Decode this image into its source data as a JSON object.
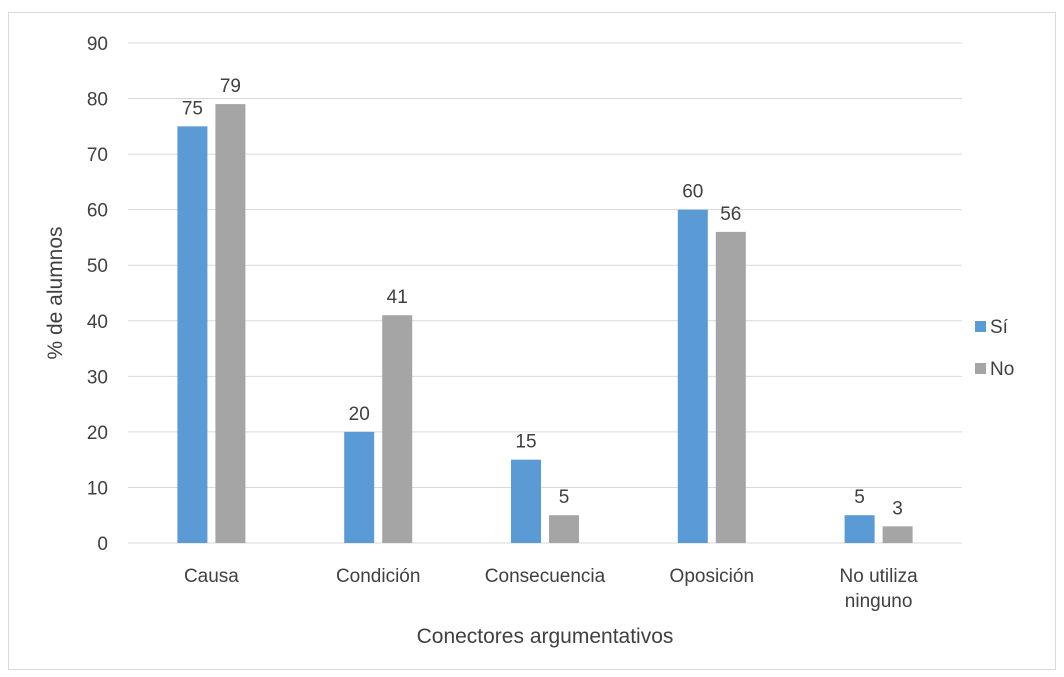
{
  "chart_data": {
    "type": "bar",
    "title": "",
    "xlabel": "Conectores argumentativos",
    "ylabel": "% de alumnos",
    "categories": [
      [
        "Causa"
      ],
      [
        "Condición"
      ],
      [
        "Consecuencia"
      ],
      [
        "Oposición"
      ],
      [
        "No utiliza",
        "ninguno"
      ]
    ],
    "series": [
      {
        "name": "Sí",
        "color": "#5b9bd5",
        "values": [
          75,
          20,
          15,
          60,
          5
        ]
      },
      {
        "name": "No",
        "color": "#a5a5a5",
        "values": [
          79,
          41,
          5,
          56,
          3
        ]
      }
    ],
    "ylim": [
      0,
      90
    ],
    "yticks": [
      0,
      10,
      20,
      30,
      40,
      50,
      60,
      70,
      80,
      90
    ],
    "grid": true,
    "legend_position": "right",
    "data_labels": true
  }
}
